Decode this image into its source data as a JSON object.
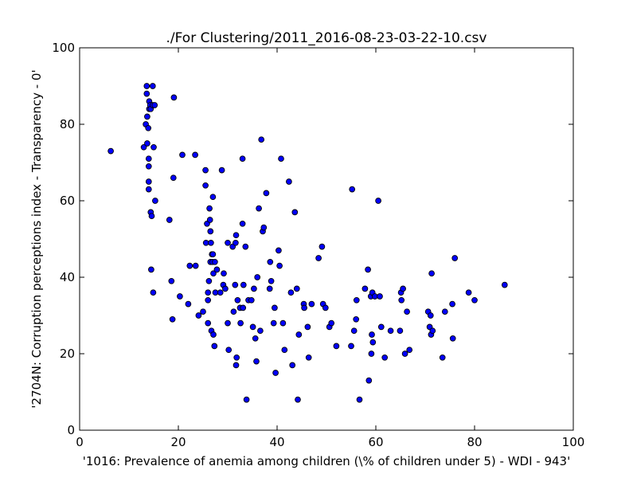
{
  "chart_data": {
    "type": "scatter",
    "title": "./For Clustering/2011_2016-08-23-03-22-10.csv",
    "xlabel": "'1016: Prevalence of anemia among children  (\\% of children under 5) - WDI - 943'",
    "ylabel": "'2704N: Corruption perceptions index - Transparency - 0'",
    "xlim": [
      0,
      100
    ],
    "ylim": [
      0,
      100
    ],
    "xticks": [
      0,
      20,
      40,
      60,
      80,
      100
    ],
    "yticks": [
      0,
      20,
      40,
      60,
      80,
      100
    ],
    "xtick_labels": [
      "0",
      "20",
      "40",
      "60",
      "80",
      "100"
    ],
    "ytick_labels": [
      "0",
      "20",
      "40",
      "60",
      "80",
      "100"
    ],
    "grid": false,
    "marker_color": "#0000ff",
    "points": [
      [
        6.3,
        73
      ],
      [
        13,
        74
      ],
      [
        13.4,
        80
      ],
      [
        13.6,
        90
      ],
      [
        13.6,
        88
      ],
      [
        13.7,
        82
      ],
      [
        13.7,
        75
      ],
      [
        13.9,
        79
      ],
      [
        14,
        71
      ],
      [
        14,
        69
      ],
      [
        14,
        65
      ],
      [
        14,
        63
      ],
      [
        14.1,
        86
      ],
      [
        14.1,
        84
      ],
      [
        14.3,
        85
      ],
      [
        14.4,
        84
      ],
      [
        14.4,
        57
      ],
      [
        14.5,
        42
      ],
      [
        14.6,
        56
      ],
      [
        14.8,
        90
      ],
      [
        14.8,
        85
      ],
      [
        14.9,
        36
      ],
      [
        15,
        74
      ],
      [
        15.2,
        85
      ],
      [
        15.3,
        60
      ],
      [
        18.2,
        55
      ],
      [
        18.6,
        39
      ],
      [
        18.8,
        29
      ],
      [
        19,
        66
      ],
      [
        19.1,
        87
      ],
      [
        20.3,
        35
      ],
      [
        20.8,
        72
      ],
      [
        22,
        33
      ],
      [
        22.3,
        43
      ],
      [
        23.4,
        72
      ],
      [
        23.5,
        43
      ],
      [
        24.1,
        30
      ],
      [
        25,
        31
      ],
      [
        25.5,
        68
      ],
      [
        25.5,
        64
      ],
      [
        25.6,
        49
      ],
      [
        25.8,
        54
      ],
      [
        26,
        36
      ],
      [
        26,
        34
      ],
      [
        26,
        28
      ],
      [
        26.2,
        39
      ],
      [
        26.3,
        58
      ],
      [
        26.4,
        55
      ],
      [
        26.5,
        52
      ],
      [
        26.5,
        44
      ],
      [
        26.6,
        49
      ],
      [
        26.7,
        26
      ],
      [
        26.8,
        46
      ],
      [
        26.9,
        44
      ],
      [
        27,
        61
      ],
      [
        27,
        46
      ],
      [
        27.1,
        41
      ],
      [
        27.1,
        25
      ],
      [
        27.3,
        22
      ],
      [
        27.4,
        44
      ],
      [
        27.5,
        36
      ],
      [
        27.8,
        42
      ],
      [
        28.5,
        36
      ],
      [
        28.8,
        68
      ],
      [
        29.1,
        38
      ],
      [
        29.2,
        41
      ],
      [
        29.5,
        37
      ],
      [
        30,
        49
      ],
      [
        30,
        28
      ],
      [
        30.2,
        21
      ],
      [
        31,
        48
      ],
      [
        31.2,
        31
      ],
      [
        31.5,
        38
      ],
      [
        31.6,
        49
      ],
      [
        31.7,
        51
      ],
      [
        31.7,
        17
      ],
      [
        31.8,
        19
      ],
      [
        32,
        34
      ],
      [
        32.5,
        32
      ],
      [
        32.6,
        28
      ],
      [
        33,
        71
      ],
      [
        33,
        54
      ],
      [
        33.1,
        32
      ],
      [
        33.2,
        38
      ],
      [
        33.6,
        48
      ],
      [
        33.8,
        8
      ],
      [
        34.2,
        34
      ],
      [
        34.8,
        34
      ],
      [
        35.1,
        27
      ],
      [
        35.3,
        37
      ],
      [
        35.6,
        24
      ],
      [
        35.8,
        18
      ],
      [
        36,
        40
      ],
      [
        36.3,
        58
      ],
      [
        36.6,
        26
      ],
      [
        36.8,
        76
      ],
      [
        37.1,
        52
      ],
      [
        37.3,
        53
      ],
      [
        37.8,
        62
      ],
      [
        38.5,
        37
      ],
      [
        38.6,
        44
      ],
      [
        38.8,
        39
      ],
      [
        39.3,
        28
      ],
      [
        39.5,
        32
      ],
      [
        39.7,
        15
      ],
      [
        40.3,
        47
      ],
      [
        40.5,
        43
      ],
      [
        40.8,
        71
      ],
      [
        41.2,
        28
      ],
      [
        41.5,
        21
      ],
      [
        42.4,
        65
      ],
      [
        42.8,
        36
      ],
      [
        43.1,
        17
      ],
      [
        43.6,
        57
      ],
      [
        44,
        37
      ],
      [
        44.2,
        8
      ],
      [
        44.4,
        25
      ],
      [
        45.4,
        33
      ],
      [
        45.5,
        32
      ],
      [
        46.2,
        27
      ],
      [
        46.4,
        19
      ],
      [
        47,
        33
      ],
      [
        48.4,
        45
      ],
      [
        49.1,
        48
      ],
      [
        49.3,
        33
      ],
      [
        49.8,
        32
      ],
      [
        50.6,
        27
      ],
      [
        51,
        28
      ],
      [
        52,
        22
      ],
      [
        55,
        22
      ],
      [
        55.2,
        63
      ],
      [
        55.6,
        26
      ],
      [
        56,
        29
      ],
      [
        56.1,
        34
      ],
      [
        56.7,
        8
      ],
      [
        57.8,
        37
      ],
      [
        58.4,
        42
      ],
      [
        58.6,
        13
      ],
      [
        59,
        35
      ],
      [
        59.1,
        20
      ],
      [
        59.2,
        25
      ],
      [
        59.3,
        36
      ],
      [
        59.4,
        23
      ],
      [
        59.8,
        35
      ],
      [
        60.5,
        60
      ],
      [
        60.8,
        35
      ],
      [
        61.1,
        27
      ],
      [
        61.8,
        19
      ],
      [
        63,
        26
      ],
      [
        64.9,
        26
      ],
      [
        65.1,
        36
      ],
      [
        65.2,
        34
      ],
      [
        65.5,
        37
      ],
      [
        65.9,
        20
      ],
      [
        66.3,
        31
      ],
      [
        66.8,
        21
      ],
      [
        70.6,
        31
      ],
      [
        70.9,
        27
      ],
      [
        71.1,
        30
      ],
      [
        71.2,
        25
      ],
      [
        71.3,
        41
      ],
      [
        71.5,
        26
      ],
      [
        73.5,
        19
      ],
      [
        74,
        31
      ],
      [
        75.5,
        33
      ],
      [
        75.6,
        24
      ],
      [
        76,
        45
      ],
      [
        78.8,
        36
      ],
      [
        80,
        34
      ],
      [
        86.1,
        38
      ]
    ]
  }
}
